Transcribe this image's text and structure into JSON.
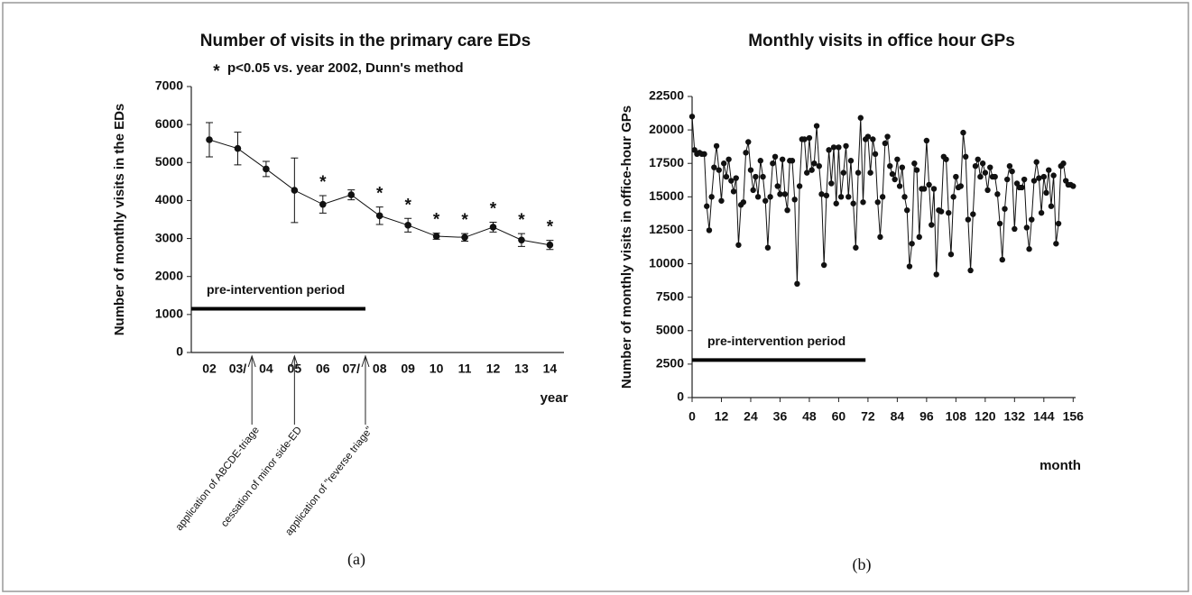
{
  "chart_data": [
    {
      "type": "line",
      "title": "Number of visits in the primary care EDs",
      "subtitle": "p<0.05 vs. year 2002, Dunn's method",
      "significance_marker": "*",
      "y_label": "Number of monthly visits in the EDs",
      "x_label": "year",
      "panel_label": "(a)",
      "categories": [
        "02",
        "03/",
        "04",
        "05",
        "06",
        "07/",
        "08",
        "09",
        "10",
        "11",
        "12",
        "13",
        "14"
      ],
      "values": [
        5600,
        5370,
        4830,
        4270,
        3900,
        4150,
        3600,
        3350,
        3060,
        3030,
        3300,
        2960,
        2830
      ],
      "errors": [
        450,
        430,
        200,
        850,
        230,
        130,
        230,
        180,
        80,
        100,
        130,
        170,
        120
      ],
      "significant": [
        false,
        false,
        false,
        false,
        true,
        false,
        true,
        true,
        true,
        true,
        true,
        true,
        true
      ],
      "color": "#111111",
      "ylim": [
        0,
        7000
      ],
      "yticks": [
        0,
        1000,
        2000,
        3000,
        4000,
        5000,
        6000,
        7000
      ],
      "period": {
        "label": "pre-intervention period",
        "y": 1150,
        "x_end": 5.5
      },
      "annotations": [
        {
          "text": "application of ABCDE-triage",
          "x": 1.5
        },
        {
          "text": "cessation of minor side-ED",
          "x": 3
        },
        {
          "text": "application of \"reverse triage\"",
          "x": 5.5
        }
      ]
    },
    {
      "type": "line",
      "title": "Monthly visits in office hour GPs",
      "y_label": "Number of monthly visits in office-hour GPs",
      "x_label": "month",
      "panel_label": "(b)",
      "x": [
        0,
        1,
        2,
        3,
        4,
        5,
        6,
        7,
        8,
        9,
        10,
        11,
        12,
        13,
        14,
        15,
        16,
        17,
        18,
        19,
        20,
        21,
        22,
        23,
        24,
        25,
        26,
        27,
        28,
        29,
        30,
        31,
        32,
        33,
        34,
        35,
        36,
        37,
        38,
        39,
        40,
        41,
        42,
        43,
        44,
        45,
        46,
        47,
        48,
        49,
        50,
        51,
        52,
        53,
        54,
        55,
        56,
        57,
        58,
        59,
        60,
        61,
        62,
        63,
        64,
        65,
        66,
        67,
        68,
        69,
        70,
        71,
        72,
        73,
        74,
        75,
        76,
        77,
        78,
        79,
        80,
        81,
        82,
        83,
        84,
        85,
        86,
        87,
        88,
        89,
        90,
        91,
        92,
        93,
        94,
        95,
        96,
        97,
        98,
        99,
        100,
        101,
        102,
        103,
        104,
        105,
        106,
        107,
        108,
        109,
        110,
        111,
        112,
        113,
        114,
        115,
        116,
        117,
        118,
        119,
        120,
        121,
        122,
        123,
        124,
        125,
        126,
        127,
        128,
        129,
        130,
        131,
        132,
        133,
        134,
        135,
        136,
        137,
        138,
        139,
        140,
        141,
        142,
        143,
        144,
        145,
        146,
        147,
        148,
        149,
        150,
        151,
        152,
        153,
        154,
        155,
        156
      ],
      "values": [
        21000,
        18500,
        18200,
        18300,
        18200,
        18200,
        14300,
        12500,
        15000,
        17200,
        18800,
        17000,
        14700,
        17500,
        16500,
        17800,
        16200,
        15400,
        16400,
        11400,
        14400,
        14600,
        18300,
        19100,
        17000,
        15500,
        16500,
        15000,
        17700,
        16500,
        14700,
        11200,
        15000,
        17500,
        18000,
        15800,
        15200,
        17800,
        15200,
        14000,
        17700,
        17700,
        14800,
        8500,
        15800,
        19300,
        19300,
        16800,
        19400,
        17000,
        17500,
        20300,
        17300,
        15200,
        9900,
        15100,
        18500,
        16000,
        18700,
        14500,
        18700,
        15000,
        16800,
        18800,
        15000,
        17700,
        14500,
        11200,
        16800,
        20900,
        14600,
        19300,
        19500,
        16800,
        19300,
        18200,
        14600,
        12000,
        15000,
        19000,
        19500,
        17300,
        16700,
        16300,
        17800,
        15800,
        17200,
        15000,
        14000,
        9800,
        11500,
        17500,
        17000,
        12000,
        15600,
        15600,
        19200,
        15900,
        12900,
        15600,
        9200,
        14000,
        13900,
        18000,
        17800,
        13800,
        10700,
        15000,
        16500,
        15700,
        15800,
        19800,
        18000,
        13300,
        9500,
        13700,
        17300,
        17800,
        16500,
        17500,
        16800,
        15500,
        17200,
        16500,
        16500,
        15200,
        13000,
        10300,
        14100,
        16300,
        17300,
        16900,
        12600,
        16000,
        15700,
        15700,
        16300,
        12700,
        11100,
        13300,
        16200,
        17600,
        16400,
        13800,
        16500,
        15300,
        17000,
        14300,
        16600,
        11500,
        13000,
        17300,
        17500,
        16200,
        15900,
        15900,
        15800
      ],
      "color": "#111111",
      "xlim": [
        0,
        157
      ],
      "xticks": [
        0,
        12,
        24,
        36,
        48,
        60,
        72,
        84,
        96,
        108,
        120,
        132,
        144,
        156
      ],
      "ylim": [
        0,
        22500
      ],
      "yticks": [
        0,
        2500,
        5000,
        7500,
        10000,
        12500,
        15000,
        17500,
        20000,
        22500
      ],
      "period": {
        "label": "pre-intervention period",
        "y": 2800,
        "x_end": 71
      }
    }
  ]
}
